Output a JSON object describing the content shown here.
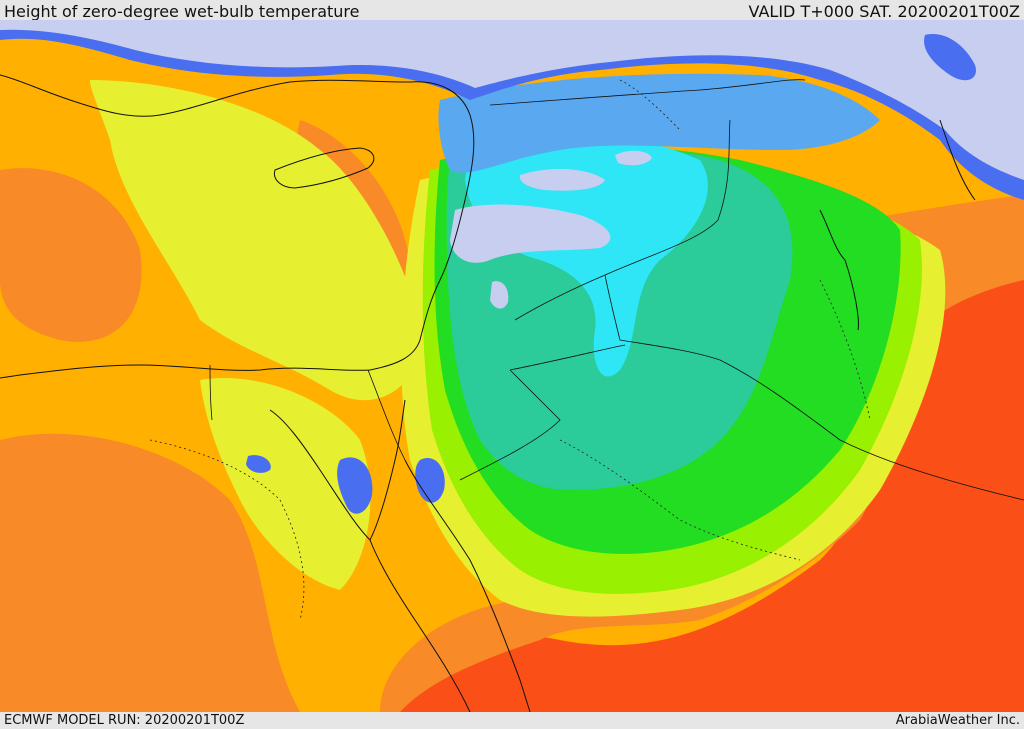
{
  "header": {
    "title": "Height of zero-degree wet-bulb temperature",
    "valid": "VALID T+000 SAT. 20200201T00Z"
  },
  "footer": {
    "model_run": "ECMWF MODEL RUN: 20200201T00Z",
    "credit": "ArabiaWeather Inc."
  },
  "palette": {
    "sea_ice": "#c8cef0",
    "blue": "#4a6ef0",
    "light_blue": "#5aa8f0",
    "cyan": "#2ee6f5",
    "teal": "#2bcc99",
    "green": "#22dd22",
    "lime": "#99f000",
    "yellow": "#e6f030",
    "orange_light": "#ffb000",
    "orange": "#f88a28",
    "red": "#fa5018"
  }
}
